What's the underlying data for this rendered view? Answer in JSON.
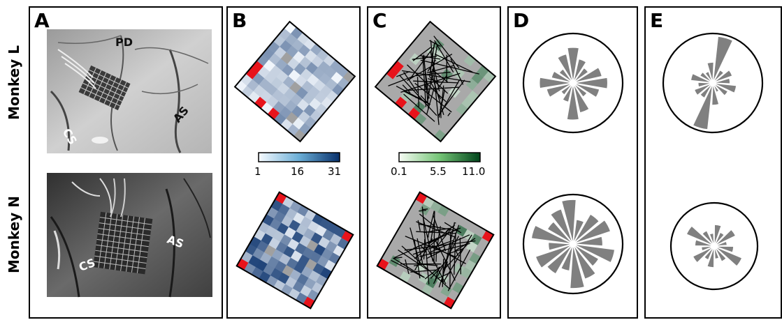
{
  "row_labels": [
    "Monkey L",
    "Monkey N"
  ],
  "panels": {
    "A": {
      "label": "A",
      "photo_labels": {
        "top": [
          "PD",
          "AS",
          "CS"
        ],
        "bottom": [
          "AS",
          "CS"
        ]
      }
    },
    "B": {
      "label": "B",
      "colorbar": {
        "ticks": [
          "1",
          "16",
          "31"
        ],
        "colors": [
          "#f7fbff",
          "#08306b"
        ]
      }
    },
    "C": {
      "label": "C",
      "colorbar": {
        "ticks": [
          "0.1",
          "5.5",
          "11.0"
        ],
        "colors": [
          "#f7fcf5",
          "#00441b"
        ]
      }
    },
    "D": {
      "label": "D"
    },
    "E": {
      "label": "E"
    }
  },
  "colors": {
    "bad_channel": "#e8131b",
    "reference": "#a0a0a0",
    "rose": "#808080"
  }
}
